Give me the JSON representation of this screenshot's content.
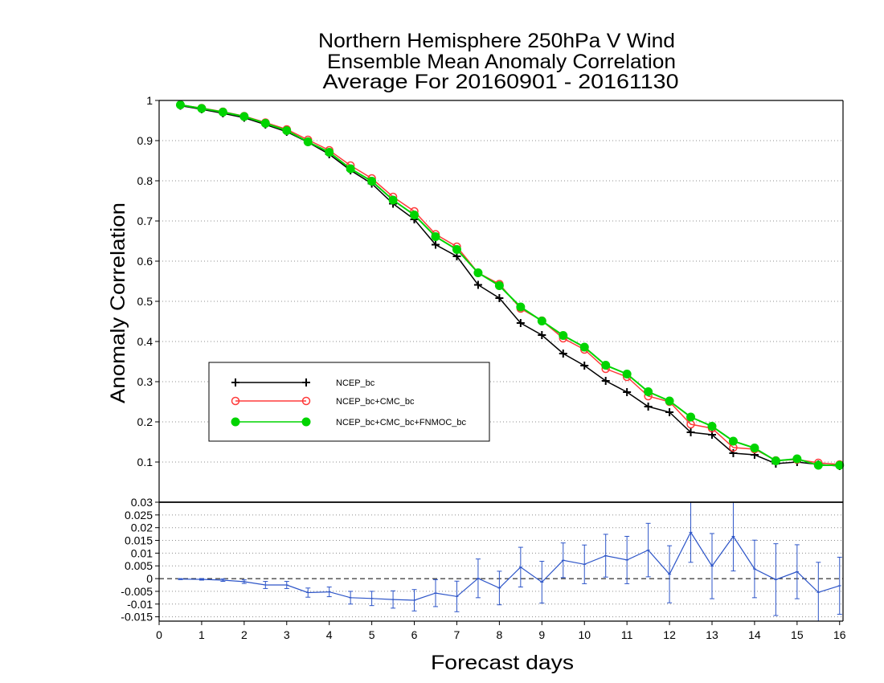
{
  "chart_data": [
    {
      "type": "line",
      "title": [
        "Northern Hemisphere 250hPa V Wind",
        "Ensemble Mean Anomaly Correlation",
        "Average For 20160901 - 20161130"
      ],
      "ylabel": "Anomaly Correlation",
      "x": [
        0.5,
        1,
        1.5,
        2,
        2.5,
        3,
        3.5,
        4,
        4.5,
        5,
        5.5,
        6,
        6.5,
        7,
        7.5,
        8,
        8.5,
        9,
        9.5,
        10,
        10.5,
        11,
        11.5,
        12,
        12.5,
        13,
        13.5,
        14,
        14.5,
        15,
        15.5,
        16
      ],
      "xlim": [
        0,
        16.08
      ],
      "ylim": [
        0,
        1
      ],
      "yticks": [
        1,
        0.9,
        0.8,
        0.7,
        0.6,
        0.5,
        0.4,
        0.3,
        0.2,
        0.1
      ],
      "ytick_labels": [
        "1",
        "0.9",
        "0.8",
        "0.7",
        "0.6",
        "0.5",
        "0.4",
        "0.3",
        "0.2",
        "0.1"
      ],
      "grid": true,
      "legend": "center-left",
      "series": [
        {
          "name": "NCEP_bc",
          "color": "#000000",
          "marker": "plus",
          "values": [
            0.987,
            0.978,
            0.968,
            0.957,
            0.94,
            0.922,
            0.896,
            0.866,
            0.826,
            0.793,
            0.743,
            0.704,
            0.641,
            0.612,
            0.541,
            0.508,
            0.446,
            0.416,
            0.37,
            0.34,
            0.302,
            0.274,
            0.238,
            0.224,
            0.174,
            0.168,
            0.122,
            0.118,
            0.096,
            0.1,
            0.094,
            0.09
          ]
        },
        {
          "name": "NCEP_bc+CMC_bc",
          "color": "#ff3b3b",
          "marker": "open-circle",
          "values": [
            0.989,
            0.981,
            0.972,
            0.961,
            0.945,
            0.928,
            0.902,
            0.876,
            0.838,
            0.806,
            0.76,
            0.724,
            0.667,
            0.636,
            0.571,
            0.543,
            0.482,
            0.452,
            0.408,
            0.38,
            0.332,
            0.312,
            0.264,
            0.25,
            0.194,
            0.184,
            0.136,
            0.132,
            0.104,
            0.106,
            0.098,
            0.094
          ]
        },
        {
          "name": "NCEP_bc+CMC_bc+FNMOC_bc",
          "color": "#00d400",
          "marker": "filled-circle",
          "values": [
            0.989,
            0.98,
            0.971,
            0.96,
            0.943,
            0.925,
            0.897,
            0.871,
            0.83,
            0.799,
            0.752,
            0.715,
            0.661,
            0.629,
            0.571,
            0.539,
            0.486,
            0.451,
            0.415,
            0.386,
            0.341,
            0.319,
            0.275,
            0.252,
            0.212,
            0.189,
            0.152,
            0.135,
            0.103,
            0.108,
            0.092,
            0.092
          ]
        }
      ]
    },
    {
      "type": "line",
      "xlabel": "Forecast days",
      "x": [
        0.5,
        1,
        1.5,
        2,
        2.5,
        3,
        3.5,
        4,
        4.5,
        5,
        5.5,
        6,
        6.5,
        7,
        7.5,
        8,
        8.5,
        9,
        9.5,
        10,
        10.5,
        11,
        11.5,
        12,
        12.5,
        13,
        13.5,
        14,
        14.5,
        15,
        15.5,
        16
      ],
      "xlim": [
        0,
        16.08
      ],
      "xticks": [
        0,
        1,
        2,
        3,
        4,
        5,
        6,
        7,
        8,
        9,
        10,
        11,
        12,
        13,
        14,
        15,
        16
      ],
      "xtick_labels": [
        "0",
        "1",
        "2",
        "3",
        "4",
        "5",
        "6",
        "7",
        "8",
        "9",
        "10",
        "11",
        "12",
        "13",
        "14",
        "15",
        "16"
      ],
      "ylim": [
        -0.0167,
        0.03
      ],
      "yticks": [
        0.03,
        0.025,
        0.02,
        0.015,
        0.01,
        0.005,
        0,
        -0.005,
        -0.01,
        -0.015
      ],
      "ytick_labels": [
        "0.03",
        "0.025",
        "0.02",
        "0.015",
        "0.01",
        "0.005",
        "0",
        "-0.005",
        "-0.01",
        "-0.015"
      ],
      "grid": true,
      "reference_line": 0,
      "series": [
        {
          "color": "#2d55c8",
          "values": [
            -0.0002,
            -0.0003,
            -0.0006,
            -0.0012,
            -0.0025,
            -0.0025,
            -0.0055,
            -0.0052,
            -0.0075,
            -0.0078,
            -0.0082,
            -0.0085,
            -0.0057,
            -0.007,
            0.0001,
            -0.0037,
            0.0045,
            -0.0014,
            0.0072,
            0.0056,
            0.009,
            0.0073,
            0.0112,
            0.0017,
            0.0182,
            0.0049,
            0.0166,
            0.0038,
            -0.0004,
            0.0027,
            -0.0054,
            -0.0028
          ],
          "error": [
            0.0002,
            0.0003,
            0.0005,
            0.0007,
            0.0014,
            0.0014,
            0.0018,
            0.0019,
            0.0025,
            0.0028,
            0.0034,
            0.0042,
            0.0053,
            0.006,
            0.0076,
            0.0066,
            0.0078,
            0.0082,
            0.0068,
            0.0076,
            0.0084,
            0.0093,
            0.0105,
            0.0112,
            0.0118,
            0.0128,
            0.0136,
            0.0113,
            0.0141,
            0.0106,
            0.0118,
            0.0112
          ]
        }
      ]
    }
  ]
}
